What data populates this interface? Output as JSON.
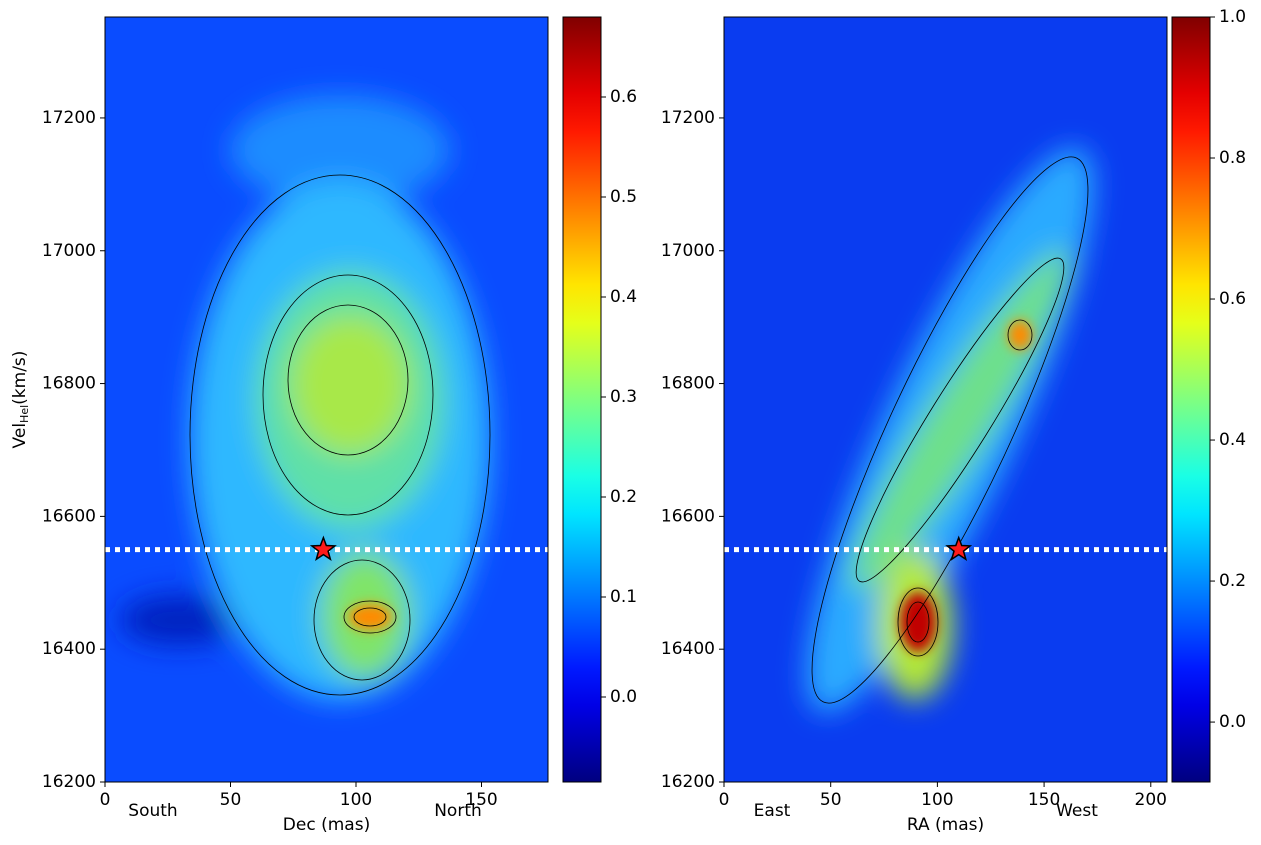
{
  "chart_data": [
    {
      "type": "heatmap",
      "xlabel": "Dec (mas)",
      "ylabel": {
        "main": "Vel",
        "sub": "Hel",
        "unit": "(km/s)"
      },
      "xlim": [
        0,
        176.5
      ],
      "xticks": [
        0,
        50,
        100,
        150
      ],
      "ylim": [
        16200,
        17352
      ],
      "yticks": [
        16200,
        16400,
        16600,
        16800,
        17000,
        17200
      ],
      "colorbar": {
        "colormap": "jet",
        "lim": [
          -0.085,
          0.68
        ],
        "ticks": [
          {
            "value": 0,
            "label": "0.0"
          },
          0.1,
          0.2,
          0.3,
          0.4,
          0.5,
          0.6
        ]
      },
      "reference_line": {
        "y": 16550,
        "color": "#ffffff",
        "style": "dotted"
      },
      "marker": {
        "x": 87,
        "y": 16550,
        "shape": "star",
        "color": "#ff1a1a"
      },
      "direction_labels": [
        "South",
        "North"
      ]
    },
    {
      "type": "heatmap",
      "xlabel": "RA (mas)",
      "xlim": [
        0,
        207.6
      ],
      "xticks": [
        0,
        50,
        100,
        150,
        200
      ],
      "ylim": [
        16200,
        17352
      ],
      "yticks": [
        16200,
        16400,
        16600,
        16800,
        17000,
        17200
      ],
      "colorbar": {
        "colormap": "jet",
        "lim": [
          -0.085,
          1.0
        ],
        "ticks": [
          {
            "value": 0,
            "label": "0.0"
          },
          0.2,
          0.4,
          0.6,
          0.8,
          {
            "value": 1,
            "label": "1.0"
          }
        ]
      },
      "reference_line": {
        "y": 16550,
        "color": "#ffffff",
        "style": "dotted"
      },
      "marker": {
        "x": 110,
        "y": 16550,
        "shape": "star",
        "color": "#ff1a1a"
      },
      "direction_labels": [
        "East",
        "West"
      ]
    }
  ]
}
